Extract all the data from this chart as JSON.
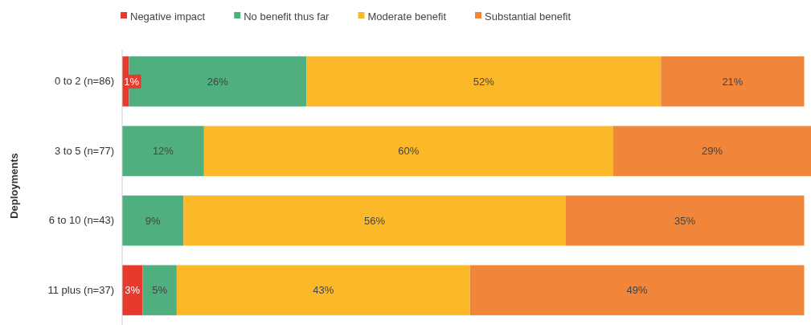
{
  "chart_data": {
    "type": "bar",
    "orientation": "horizontal",
    "stacked": true,
    "ylabel": "Deployments",
    "categories": [
      "0 to 2  (n=86)",
      "3 to 5 (n=77)",
      "6 to 10 (n=43)",
      "11 plus (n=37)"
    ],
    "xlim": [
      0,
      101
    ],
    "tick_labels": "y",
    "legend": "top",
    "series": [
      {
        "name": "Negative  impact",
        "color": "#e8392f",
        "values": [
          1,
          0,
          0,
          3
        ],
        "value_labels": [
          "1%",
          null,
          null,
          "3%"
        ]
      },
      {
        "name": "No benefit thus far",
        "color": "#4faf7f",
        "values": [
          26,
          12,
          9,
          5
        ],
        "value_labels": [
          "26%",
          "12%",
          "9%",
          "5%"
        ]
      },
      {
        "name": "Moderate benefit",
        "color": "#fbb829",
        "values": [
          52,
          60,
          56,
          43
        ],
        "value_labels": [
          "52%",
          "60%",
          "56%",
          "43%"
        ]
      },
      {
        "name": "Substantial  benefit",
        "color": "#f1853a",
        "values": [
          21,
          29,
          35,
          49
        ],
        "value_labels": [
          "21%",
          "29%",
          "35%",
          "49%"
        ]
      }
    ]
  }
}
